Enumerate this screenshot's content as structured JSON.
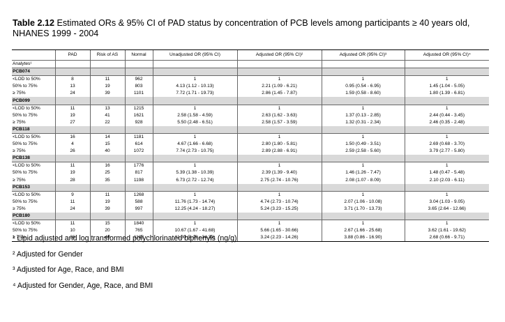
{
  "caption": {
    "label": "Table 2.12",
    "text": " Estimated ORs & 95% CI of PAD status by concentration of PCB levels among participants ≥ 40 years old, NHANES 1999 - 2004"
  },
  "headers": [
    "",
    "PAD",
    "Risk of AS",
    "Normal",
    "Unadjusted OR (95% CI)",
    "Adjusted OR (95% CI)²",
    "Adjusted OR (95% CI)³",
    "Adjusted OR (95% CI)⁴"
  ],
  "analyte_label": "Analytes¹",
  "groups": [
    {
      "name": "PCB074",
      "rows": [
        [
          "<LOD to 50%",
          "8",
          "11",
          "962",
          "1",
          "1",
          "1",
          "1"
        ],
        [
          "50% to 75%",
          "13",
          "19",
          "803",
          "4.13 (1.12 - 10.13)",
          "2.21 (1.09 - 6.21)",
          "0.95 (0.54 - 6.95)",
          "1.45 (1.04 - 5.05)"
        ],
        [
          "≥ 75%",
          "24",
          "39",
          "1101",
          "7.72 (1.71 - 19.73)",
          "2.86 (1.45 - 7.87)",
          "1.59 (0.58 - 8.60)",
          "1.80 (1.39 - 6.81)"
        ]
      ]
    },
    {
      "name": "PCB099",
      "rows": [
        [
          "<LOD to 50%",
          "11",
          "13",
          "1215",
          "1",
          "1",
          "1",
          "1"
        ],
        [
          "50% to 75%",
          "19",
          "41",
          "1621",
          "2.58 (1.58 - 4.59)",
          "2.63 (1.62 - 3.63)",
          "1.37 (0.13 - 2.85)",
          "2.44 (0.44 - 3.45)"
        ],
        [
          "≥ 75%",
          "27",
          "22",
          "928",
          "5.50 (2.48 - 6.51)",
          "2.58 (1.57 - 3.59)",
          "1.32 (0.31 - 2.34)",
          "2.46 (0.35 - 2.48)"
        ]
      ]
    },
    {
      "name": "PCB118",
      "rows": [
        [
          "<LOD to 50%",
          "16",
          "14",
          "1181",
          "1",
          "1",
          "1",
          "1"
        ],
        [
          "50% to 75%",
          "4",
          "15",
          "614",
          "4.67 (1.66 - 6.68)",
          "2.80 (1.80 - 5.81)",
          "1.50 (0.49 - 3.51)",
          "2.69 (0.68 - 3.70)"
        ],
        [
          "≥ 75%",
          "26",
          "40",
          "1072",
          "7.74 (2.73 - 10.75)",
          "2.89 (2.88 - 6.91)",
          "2.59 (2.58 - 5.60)",
          "3.79 (2.77 - 5.80)"
        ]
      ]
    },
    {
      "name": "PCB138",
      "rows": [
        [
          "<LOD to 50%",
          "11",
          "16",
          "1776",
          "1",
          "1",
          "1",
          "1"
        ],
        [
          "50% to 75%",
          "19",
          "25",
          "817",
          "5.39 (1.38 - 10.39)",
          "2.39 (1.39 - 9.40)",
          "1.46 (1.26 - 7.47)",
          "1.48 (0.47 - 5.48)"
        ],
        [
          "≥ 75%",
          "28",
          "35",
          "1198",
          "6.73 (2.72 - 12.74)",
          "2.75 (2.74 - 10.76)",
          "2.08 (1.07 - 8.09)",
          "2.10 (2.03 - 6.11)"
        ]
      ]
    },
    {
      "name": "PCB153",
      "rows": [
        [
          "<LOD to 50%",
          "9",
          "11",
          "1268",
          "1",
          "1",
          "1",
          "1"
        ],
        [
          "50% to 75%",
          "11",
          "19",
          "588",
          "11.76 (1.73 - 14.74)",
          "4.74 (2.73 - 10.74)",
          "2.07 (1.06 - 10.08)",
          "3.04 (1.03 - 9.05)"
        ],
        [
          "≥ 75%",
          "24",
          "39",
          "997",
          "12.25 (4.24 - 18.27)",
          "5.24 (3.23 - 15.25)",
          "3.71 (1.70 - 13.73)",
          "3.65 (2.64 - 12.66)"
        ]
      ]
    },
    {
      "name": "PCB180",
      "rows": [
        [
          "<LOD to 50%",
          "11",
          "15",
          "1840",
          "1",
          "1",
          "1",
          "1"
        ],
        [
          "50% to 75%",
          "10",
          "20",
          "765",
          "10.67 (1.67 - 41.68)",
          "5.66 (1.65 - 30.66)",
          "2.67 (1.66 - 25.68)",
          "3.62 (1.61 - 19.62)"
        ],
        [
          "≥ 75%",
          "36",
          "40",
          "1188",
          "11.30 (4.29 - 34.33)",
          "3.24 (2.23 - 14.26)",
          "3.88 (0.86 - 16.90)",
          "2.68 (0.66 - 9.71)"
        ]
      ]
    }
  ],
  "footnotes": [
    "¹ Lipid adjusted and log transformed polychlorinated biphenyls (ng/g)",
    "² Adjusted for Gender",
    "³ Adjusted for Age, Race, and BMI",
    "⁴ Adjusted for Gender, Age, Race, and BMI"
  ]
}
